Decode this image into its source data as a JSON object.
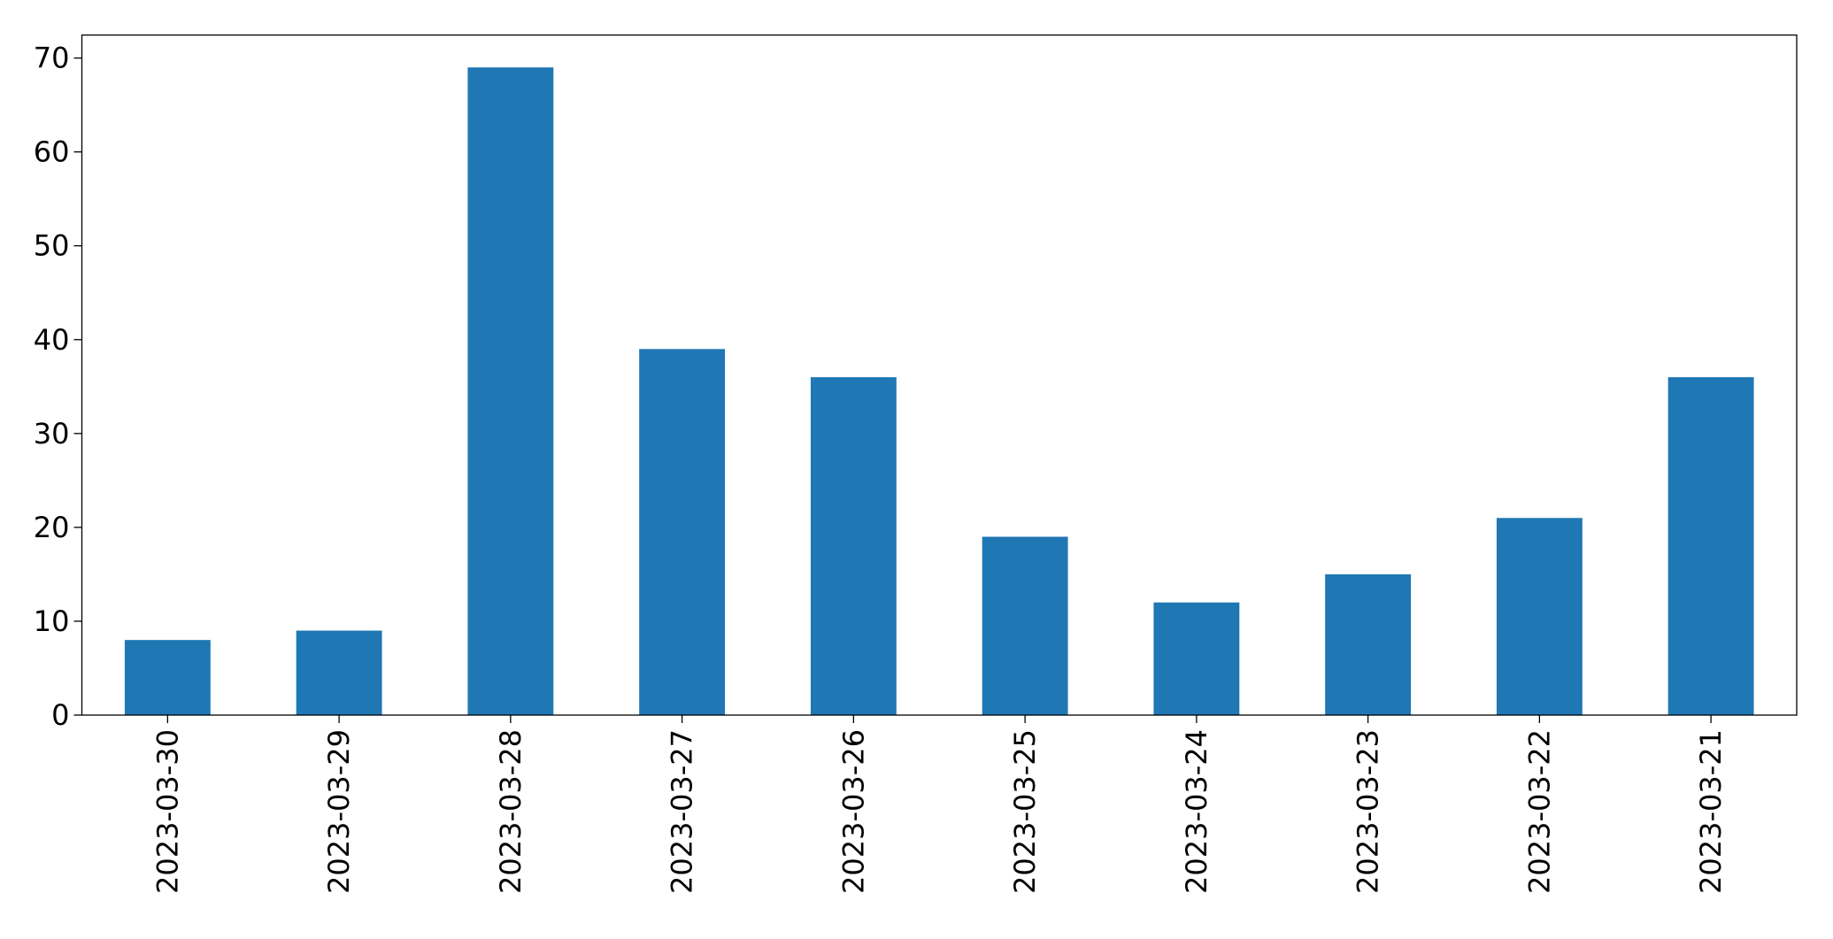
{
  "chart_data": {
    "type": "bar",
    "categories": [
      "2023-03-30",
      "2023-03-29",
      "2023-03-28",
      "2023-03-27",
      "2023-03-26",
      "2023-03-25",
      "2023-03-24",
      "2023-03-23",
      "2023-03-22",
      "2023-03-21"
    ],
    "values": [
      8,
      9,
      69,
      39,
      36,
      19,
      12,
      15,
      21,
      36
    ],
    "color": "#1f77b4",
    "ylim": [
      0,
      72.45
    ],
    "yticks": [
      0,
      10,
      20,
      30,
      40,
      50,
      60,
      70
    ],
    "grid": false
  }
}
